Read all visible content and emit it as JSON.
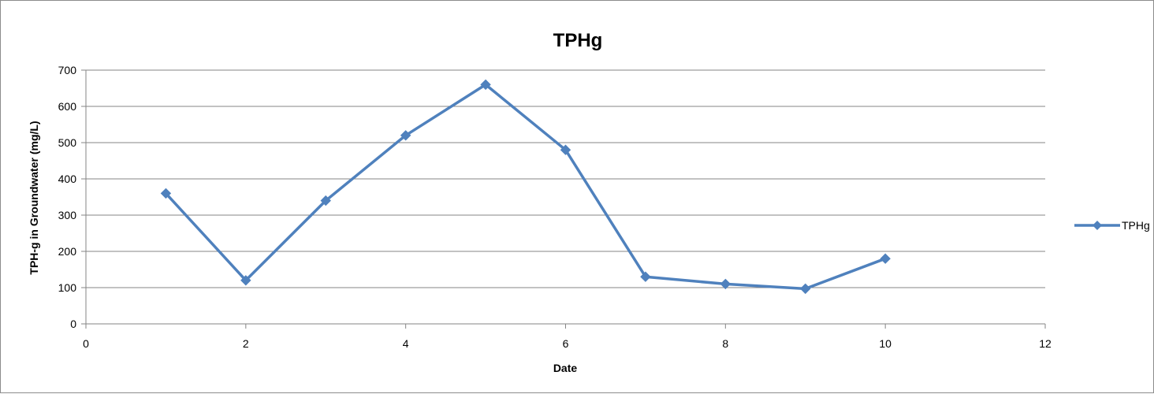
{
  "chart_data": {
    "type": "scatter",
    "title": "TPHg",
    "xlabel": "Date",
    "ylabel": "TPH-g in Groundwater (mg/L)",
    "xlim": [
      0,
      12
    ],
    "ylim": [
      0,
      700
    ],
    "x_ticks": [
      0,
      2,
      4,
      6,
      8,
      10,
      12
    ],
    "y_ticks": [
      0,
      100,
      200,
      300,
      400,
      500,
      600,
      700
    ],
    "grid": "horizontal",
    "legend_position": "right",
    "series": [
      {
        "name": "TPHg",
        "color": "#4F81BD",
        "marker": "diamond",
        "points": [
          {
            "x": 1,
            "y": 360
          },
          {
            "x": 2,
            "y": 120
          },
          {
            "x": 3,
            "y": 340
          },
          {
            "x": 4,
            "y": 520
          },
          {
            "x": 5,
            "y": 660
          },
          {
            "x": 6,
            "y": 480
          },
          {
            "x": 7,
            "y": 130
          },
          {
            "x": 8,
            "y": 110
          },
          {
            "x": 9,
            "y": 97
          },
          {
            "x": 10,
            "y": 180
          }
        ]
      }
    ]
  }
}
